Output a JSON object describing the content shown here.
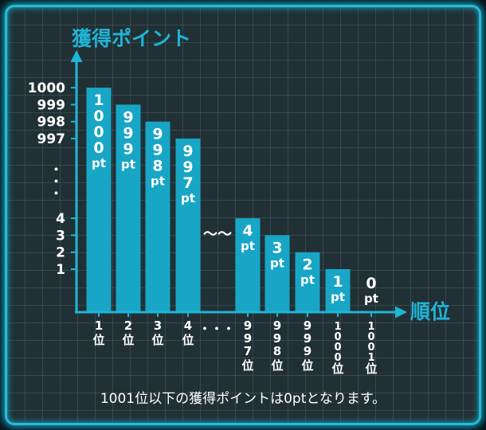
{
  "chart_data": {
    "type": "bar",
    "ylabel": "獲得ポイント",
    "xlabel": "順位",
    "ytick_labels_top": [
      "1000",
      "999",
      "998",
      "997"
    ],
    "ytick_labels_bottom": [
      "4",
      "3",
      "2",
      "1"
    ],
    "y_ellipsis": "・・・",
    "break_mark": "〜〜",
    "x_ellipsis": "・・・",
    "unit": "pt",
    "rank_unit": "位",
    "bars": [
      {
        "rank": "1",
        "value": 1000
      },
      {
        "rank": "2",
        "value": 999
      },
      {
        "rank": "3",
        "value": 998
      },
      {
        "rank": "4",
        "value": 997
      },
      {
        "rank": "997",
        "value": 4
      },
      {
        "rank": "998",
        "value": 3
      },
      {
        "rank": "999",
        "value": 2
      },
      {
        "rank": "1000",
        "value": 1
      },
      {
        "rank": "1001",
        "value": 0
      }
    ],
    "grid": true,
    "bar_color": "#18a6c6",
    "axis_color": "#1fb4d6",
    "text_color": "#ffffff"
  },
  "caption": "1001位以下の獲得ポイントは0ptとなります。"
}
